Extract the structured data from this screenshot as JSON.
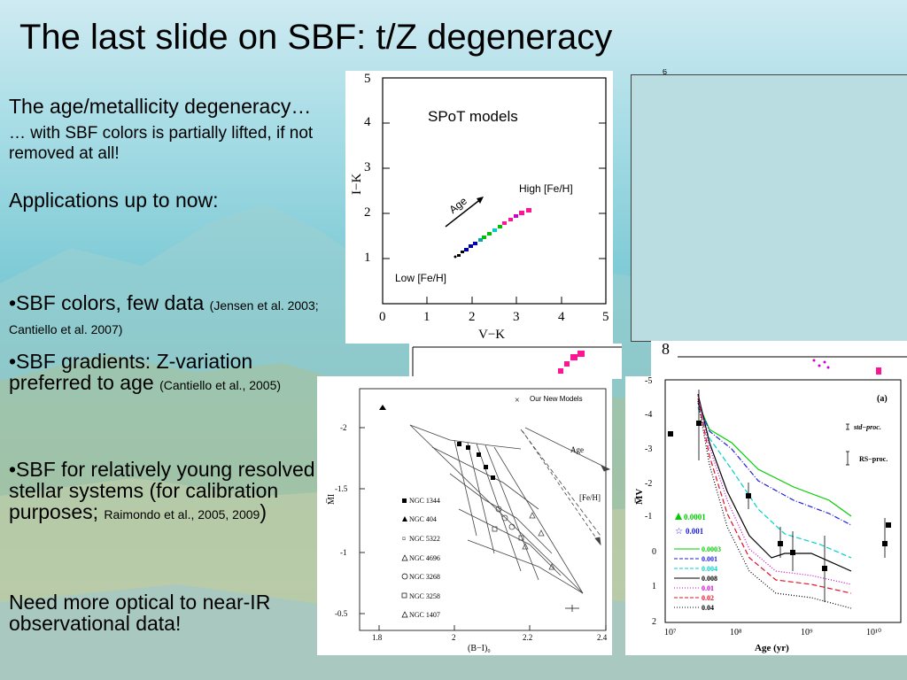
{
  "slide": {
    "title": "The last slide on SBF: t/Z degeneracy"
  },
  "left": {
    "p1": "The age/metallicity degeneracy…",
    "p2": "… with SBF colors is partially lifted, if not removed at all!",
    "p3": "Applications up to now:",
    "b1_main": "•SBF colors, few data",
    "b1_ref": "(Jensen et al. 2003; Cantiello et al. 2007)",
    "b2_main": "•SBF gradients: Z-variation preferred to age",
    "b2_ref": "(Cantiello et al., 2005)",
    "b3_main": "•SBF for relatively young resolved stellar systems (for calibration purposes;",
    "b3_ref": "Raimondo et al., 2005, 2009",
    "b3_close": ")",
    "p4": "Need more optical to near-IR observational data!"
  },
  "top_plot": {
    "label": "SPoT models",
    "high": "High [Fe/H]",
    "low": "Low [Fe/H]",
    "age": "Age",
    "xlabel": "V−K",
    "ylabel": "I−K",
    "xticks": [
      "0",
      "1",
      "2",
      "3",
      "4",
      "5"
    ],
    "yticks": [
      "1",
      "2",
      "3",
      "4",
      "5"
    ],
    "partial_tick_6": "6",
    "partial_tick_8": "8"
  },
  "bottom_left_plot": {
    "legend_title": "Our New Models",
    "age_label": "Age",
    "feh_label": "[Fe/H]",
    "xlabel": "(B−I)₀",
    "ylabel": "M̅I",
    "xticks": [
      "1.8",
      "2",
      "2.2",
      "2.4"
    ],
    "yticks": [
      "-2",
      "-1.5",
      "-1",
      "-0.5"
    ],
    "galaxies": [
      "NGC 1344",
      "NGC 404",
      "NGC 5322",
      "NGC 4696",
      "NGC 3268",
      "NGC 3258",
      "NGC 1407"
    ]
  },
  "bottom_right_plot": {
    "panel_label": "(a)",
    "std_label": "std−proc.",
    "rs_label": "RS−proc.",
    "ylabel": "M̅V",
    "xlabel": "Age (yr)",
    "yticks": [
      "-5",
      "-4",
      "-3",
      "-2",
      "-1",
      "0",
      "1",
      "2"
    ],
    "xticks": [
      "10⁷",
      "10⁸",
      "10⁹",
      "10¹⁰"
    ],
    "z_green": "0.0001",
    "z_blue": "0.001",
    "z_lines": [
      "0.0003",
      "0.001",
      "0.004",
      "0.008",
      "0.01",
      "0.02",
      "0.04"
    ]
  },
  "colors": {
    "placeholder": "#b9dde0",
    "green": "#00cc00",
    "blue": "#1e1edc",
    "cyan": "#00d0c8",
    "magenta": "#cc00cc",
    "red": "#e0102a",
    "pink": "#ff1493"
  }
}
